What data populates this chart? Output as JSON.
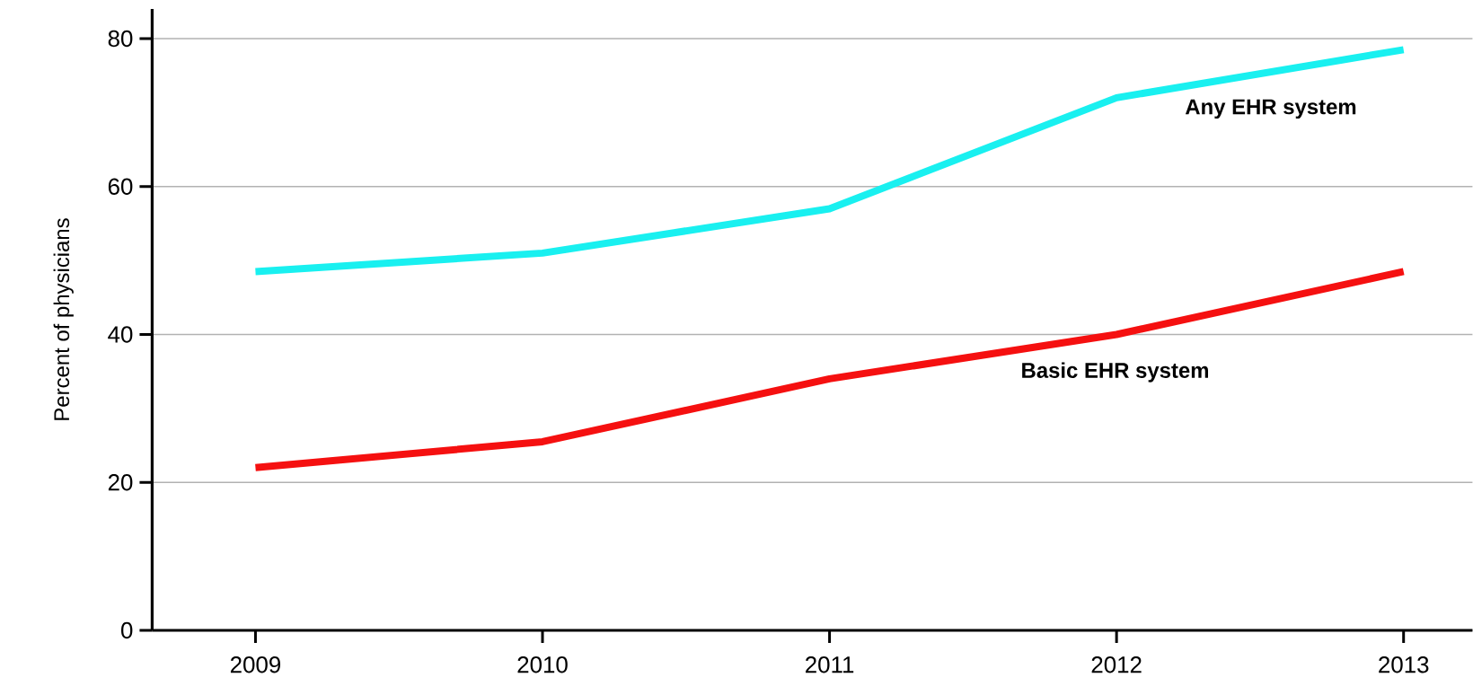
{
  "chart_data": {
    "type": "line",
    "ylabel": "Percent of physicians",
    "x": [
      2009,
      2010,
      2011,
      2012,
      2013
    ],
    "series": [
      {
        "name": "Any EHR system",
        "color": "#19f0f0",
        "values": [
          48.5,
          51,
          57,
          72,
          78.5
        ]
      },
      {
        "name": "Basic EHR system",
        "color": "#f51010",
        "values": [
          22,
          25.5,
          34,
          40,
          48.5
        ]
      }
    ],
    "xlim": [
      2008.64,
      2013.24
    ],
    "ylim": [
      0,
      84
    ],
    "xticks": [
      2009,
      2010,
      2011,
      2012,
      2013
    ],
    "yticks": [
      0,
      20,
      40,
      60,
      80
    ],
    "grid": "y",
    "marker": "none",
    "line_style": "solid"
  }
}
